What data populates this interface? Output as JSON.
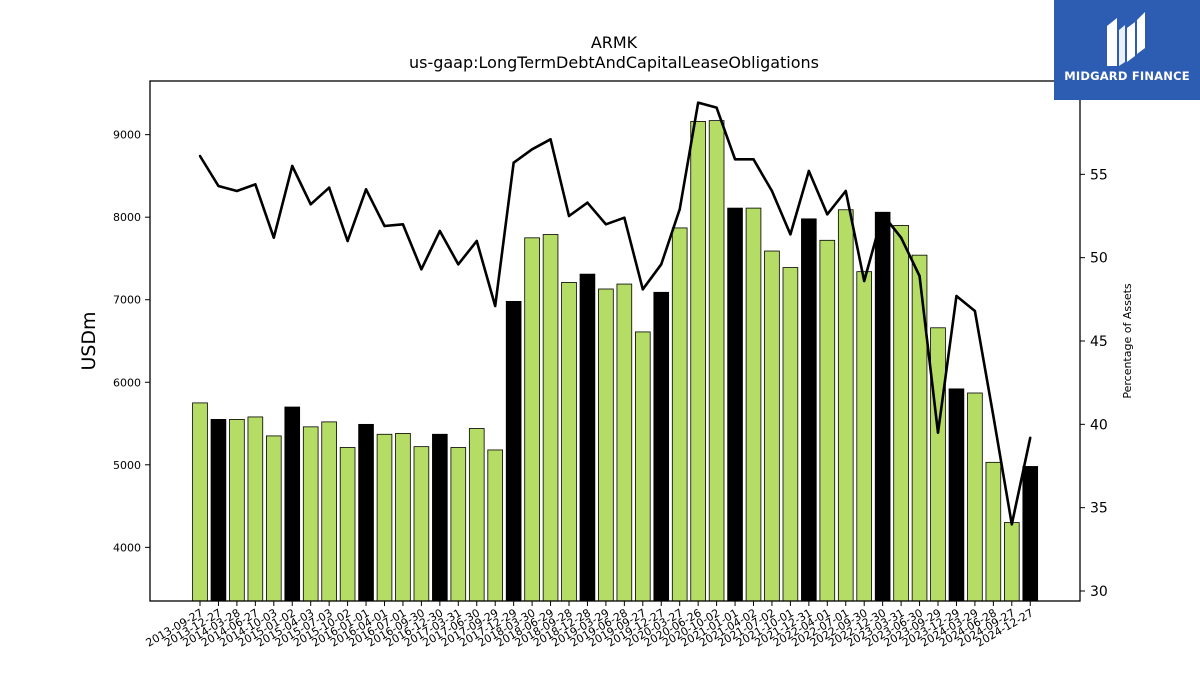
{
  "chart_data": {
    "type": "bar",
    "title": "ARMK",
    "subtitle": "us-gaap:LongTermDebtAndCapitalLeaseObligations",
    "ylabel": "USDm",
    "y2label": "Percentage of Assets",
    "ylim": [
      3350,
      9650
    ],
    "y2lim": [
      29.4,
      60.6
    ],
    "yticks": [
      4000,
      5000,
      6000,
      7000,
      8000,
      9000
    ],
    "y2ticks": [
      30,
      35,
      40,
      45,
      50,
      55
    ],
    "grid": false,
    "legend": "none",
    "colors": {
      "bar_quarterly": "#b5dc64",
      "bar_annual": "#000000",
      "line": "#000000"
    },
    "categories": [
      "2013-09-27",
      "2013-12-27",
      "2014-03-28",
      "2014-06-27",
      "2014-10-03",
      "2015-01-02",
      "2015-04-03",
      "2015-07-03",
      "2015-10-02",
      "2016-01-01",
      "2016-04-01",
      "2016-07-01",
      "2016-09-30",
      "2016-12-30",
      "2017-03-31",
      "2017-06-30",
      "2017-09-29",
      "2017-12-29",
      "2018-03-30",
      "2018-06-29",
      "2018-09-28",
      "2018-12-28",
      "2019-03-29",
      "2019-06-28",
      "2019-09-27",
      "2019-12-27",
      "2020-03-27",
      "2020-06-26",
      "2020-10-02",
      "2021-01-01",
      "2021-04-02",
      "2021-07-02",
      "2021-10-01",
      "2021-12-31",
      "2022-04-01",
      "2022-07-01",
      "2022-09-30",
      "2022-12-30",
      "2023-03-31",
      "2023-06-30",
      "2023-09-29",
      "2023-12-29",
      "2024-03-29",
      "2024-06-28",
      "2024-09-27",
      "2024-12-27"
    ],
    "series": [
      {
        "values": [
          5750,
          5550,
          5550,
          5580,
          5350,
          5700,
          5460,
          5520,
          5210,
          5490,
          5370,
          5380,
          5220,
          5370,
          5210,
          5440,
          5180,
          6980,
          7750,
          7790,
          7210,
          7310,
          7130,
          7190,
          6610,
          7090,
          7870,
          9160,
          9170,
          8110,
          8110,
          7590,
          7390,
          7980,
          7720,
          8090,
          7340,
          8060,
          7900,
          7540,
          6660,
          5920,
          5870,
          5030,
          4300,
          4980
        ],
        "annual": [
          false,
          true,
          false,
          false,
          false,
          true,
          false,
          false,
          false,
          true,
          false,
          false,
          false,
          true,
          false,
          false,
          false,
          true,
          false,
          false,
          false,
          true,
          false,
          false,
          false,
          true,
          false,
          false,
          false,
          true,
          false,
          false,
          false,
          true,
          false,
          false,
          false,
          true,
          false,
          false,
          false,
          true,
          false,
          false,
          false,
          true
        ]
      },
      {
        "values": [
          56.1,
          54.3,
          54.0,
          54.4,
          51.2,
          55.5,
          53.2,
          54.2,
          51.0,
          54.1,
          51.9,
          52.0,
          49.3,
          51.6,
          49.6,
          51.0,
          47.1,
          55.7,
          56.5,
          57.1,
          52.5,
          53.3,
          52.0,
          52.4,
          48.1,
          49.6,
          52.9,
          59.3,
          59.0,
          55.9,
          55.9,
          54.0,
          51.4,
          55.2,
          52.6,
          54.0,
          48.6,
          52.6,
          51.2,
          48.9,
          39.5,
          47.7,
          46.8,
          40.5,
          34.0,
          39.2
        ]
      }
    ]
  },
  "logo": {
    "text": "MIDGARD FINANCE"
  }
}
